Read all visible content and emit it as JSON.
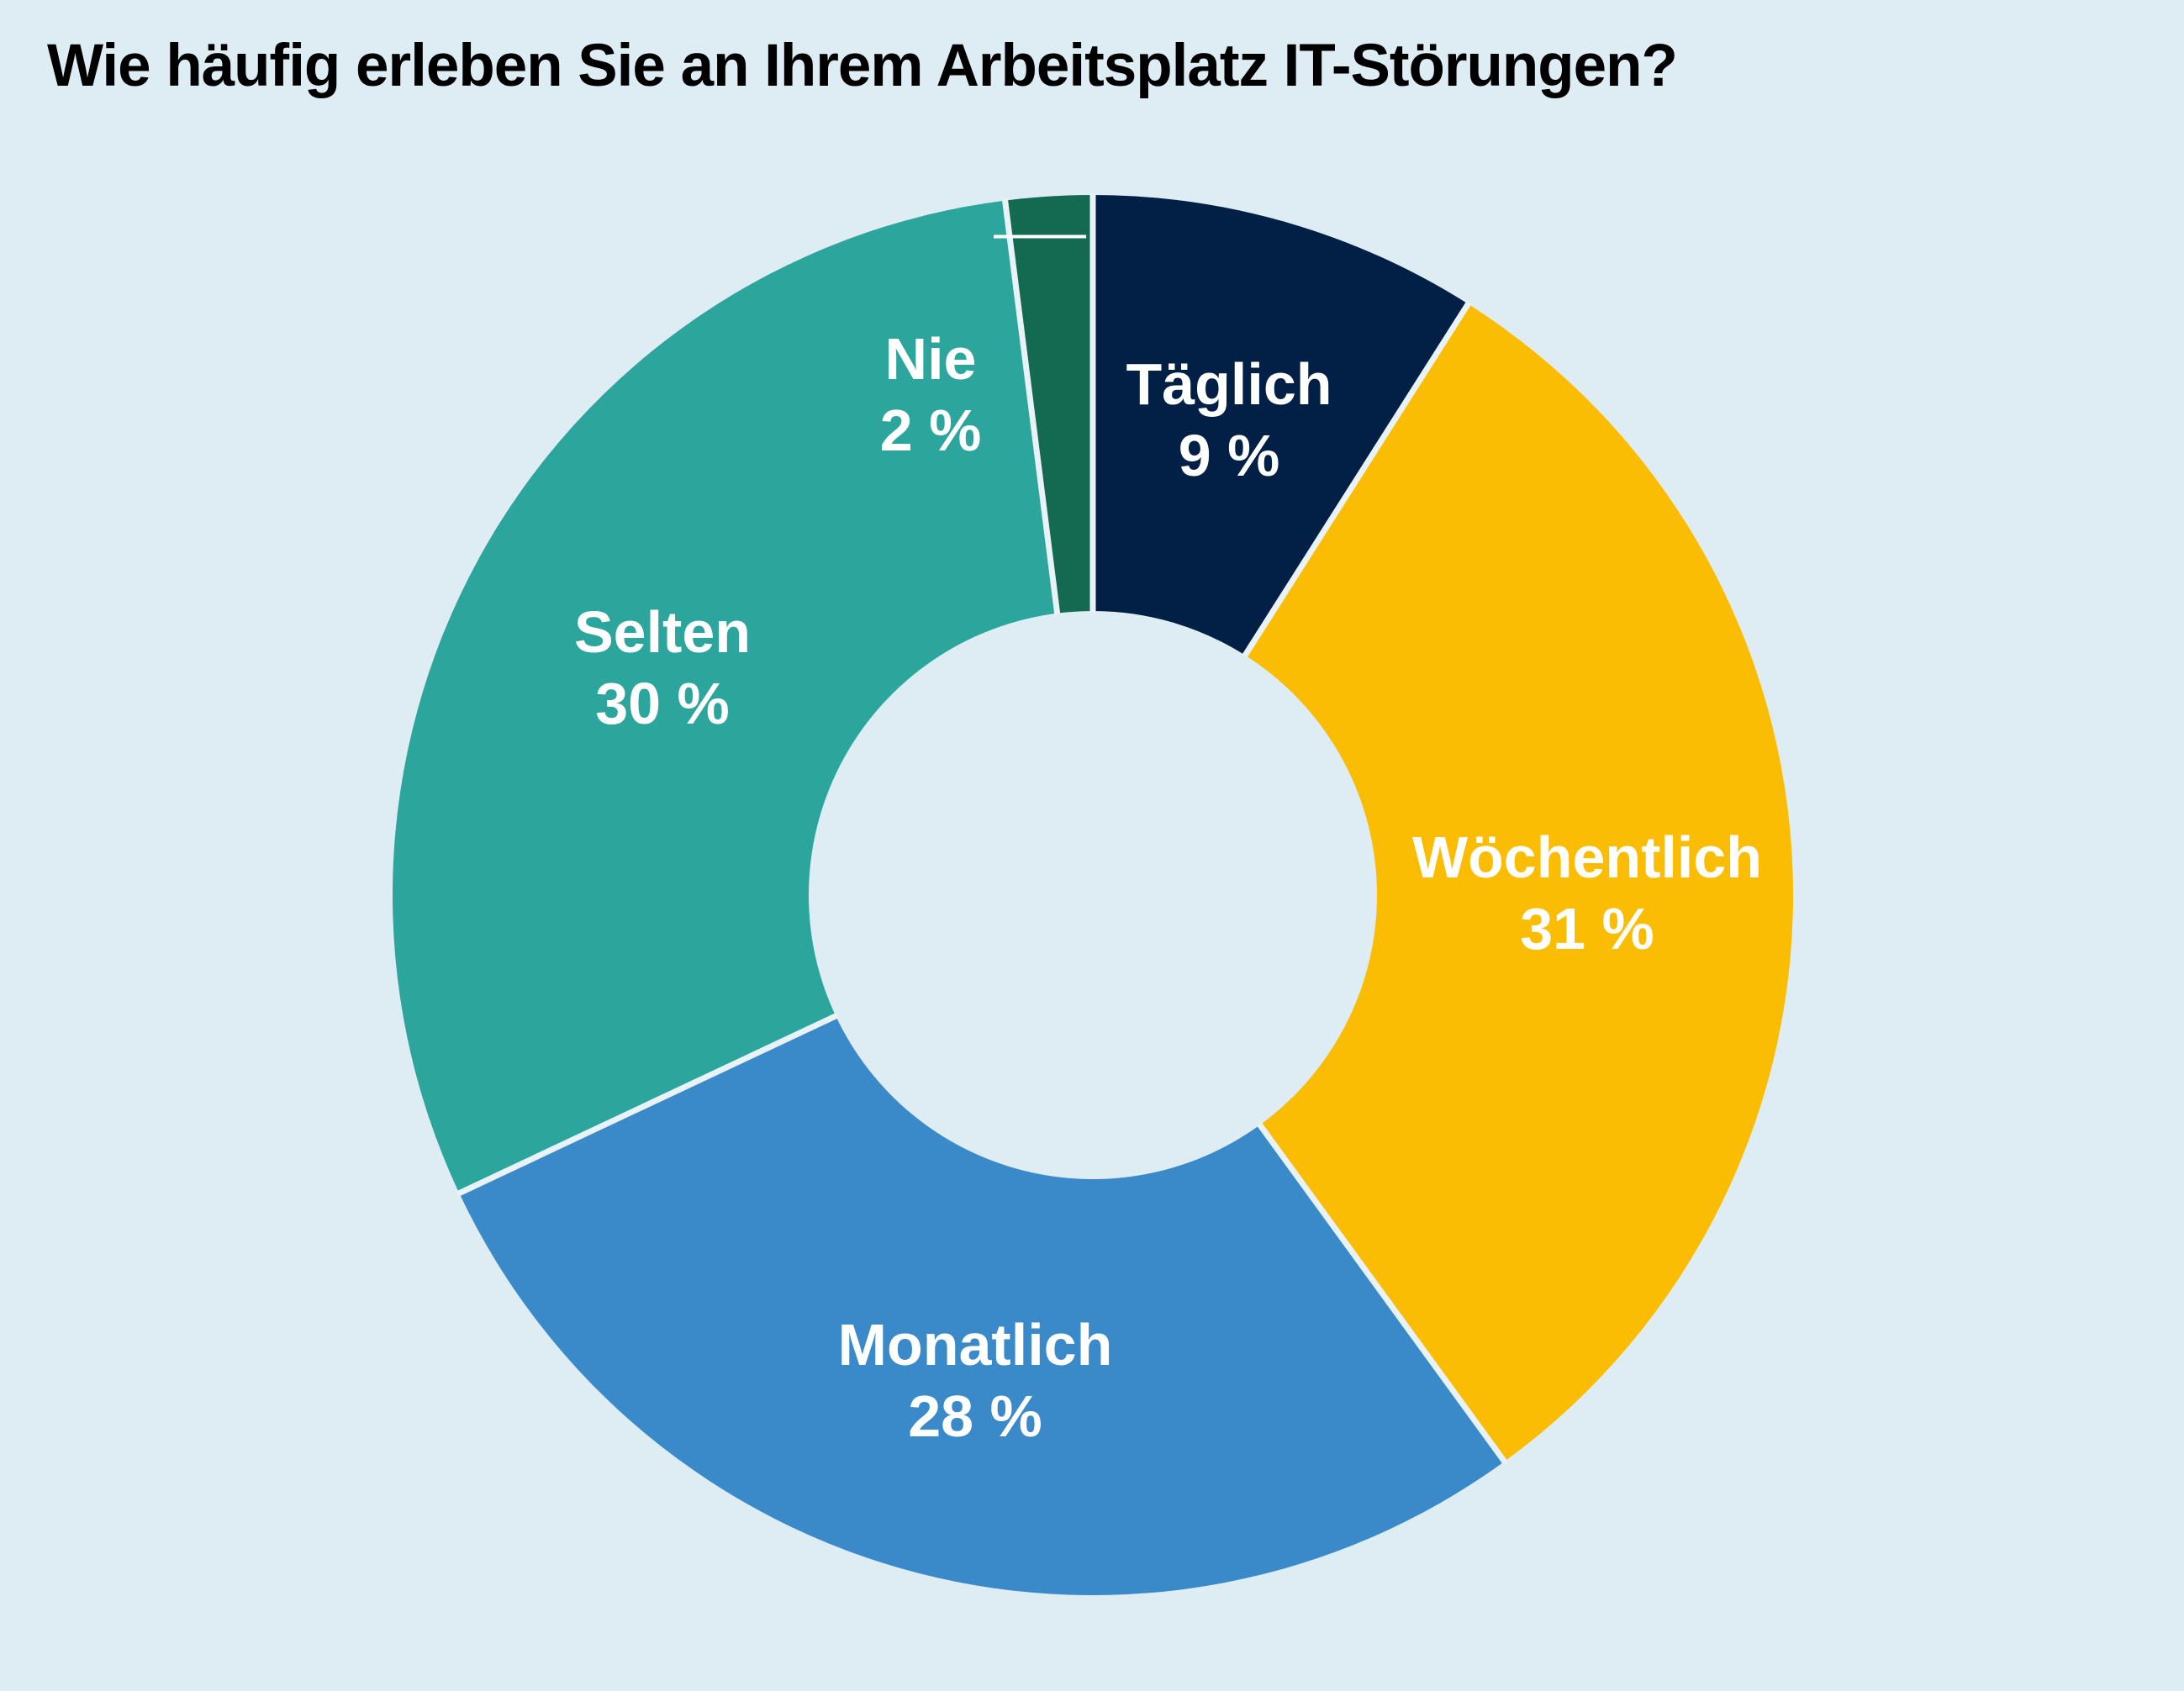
{
  "chart_data": {
    "type": "pie",
    "title": "Wie häufig erleben Sie an Ihrem Arbeitsplatz IT-Störungen?",
    "slices": [
      {
        "name": "Täglich",
        "value": 9,
        "label": "9 %",
        "color": "#021f45"
      },
      {
        "name": "Wöchentlich",
        "value": 31,
        "label": "31 %",
        "color": "#fbbc04"
      },
      {
        "name": "Monatlich",
        "value": 28,
        "label": "28 %",
        "color": "#3a89c9"
      },
      {
        "name": "Selten",
        "value": 30,
        "label": "30 %",
        "color": "#2ca59d"
      },
      {
        "name": "Nie",
        "value": 2,
        "label": "2 %",
        "color": "#146951"
      }
    ],
    "background_color": "#deedf4",
    "separator_color": "#e9f3f7",
    "legend": "none"
  }
}
